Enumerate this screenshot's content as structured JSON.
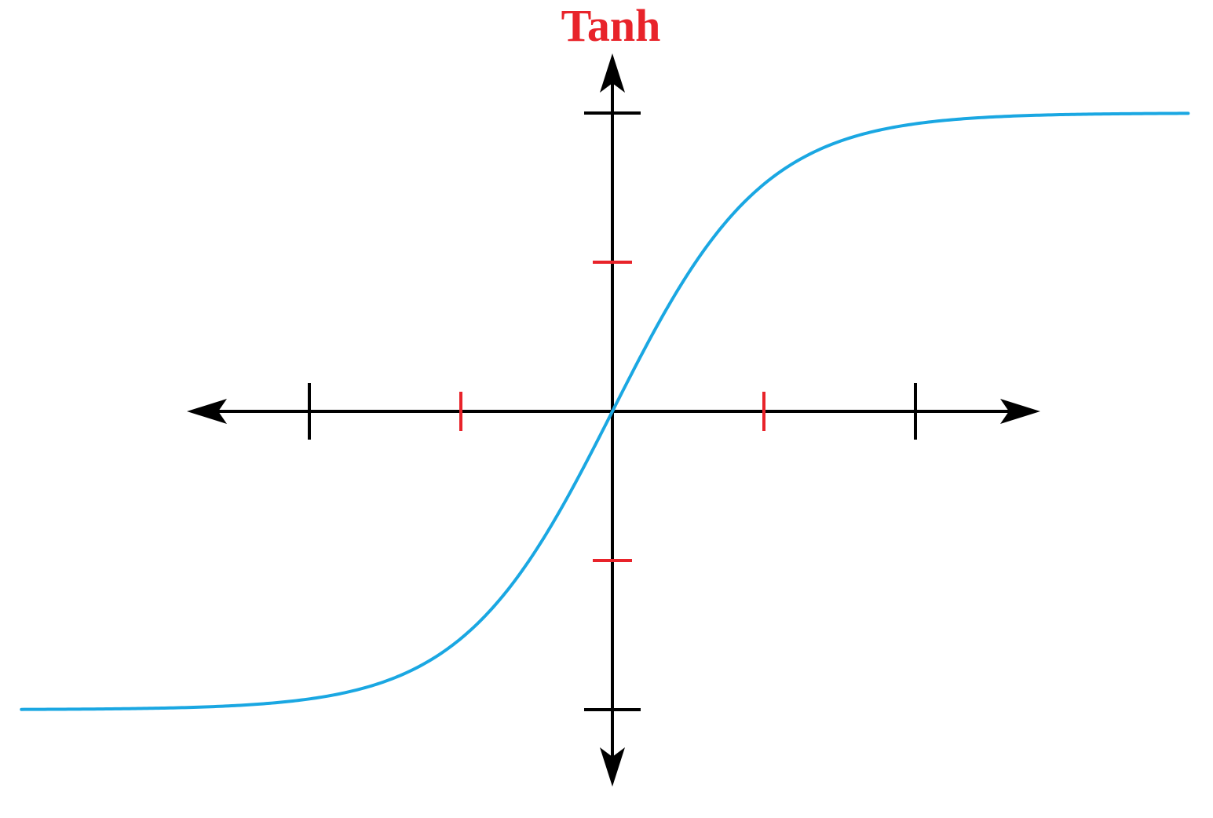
{
  "chart_data": {
    "type": "line",
    "title": "Tanh",
    "xlabel": "",
    "ylabel": "",
    "xlim": [
      -2.8,
      2.8
    ],
    "ylim": [
      -1.05,
      1.05
    ],
    "x_ticks": [
      {
        "value": -2,
        "color": "#000000"
      },
      {
        "value": -1,
        "color": "#e8232a"
      },
      {
        "value": 1,
        "color": "#e8232a"
      },
      {
        "value": 2,
        "color": "#000000"
      }
    ],
    "y_ticks": [
      {
        "value": 1,
        "color": "#000000"
      },
      {
        "value": 0.5,
        "color": "#e8232a"
      },
      {
        "value": -0.5,
        "color": "#e8232a"
      },
      {
        "value": -1,
        "color": "#000000"
      }
    ],
    "series": [
      {
        "function": "tanh",
        "x_range": [
          -3.9,
          3.8
        ],
        "color": "#1aa7e2"
      }
    ],
    "grid": false,
    "legend": "none"
  },
  "colors": {
    "title": "#e8232a",
    "axis": "#000000",
    "curve": "#1aa7e2"
  }
}
